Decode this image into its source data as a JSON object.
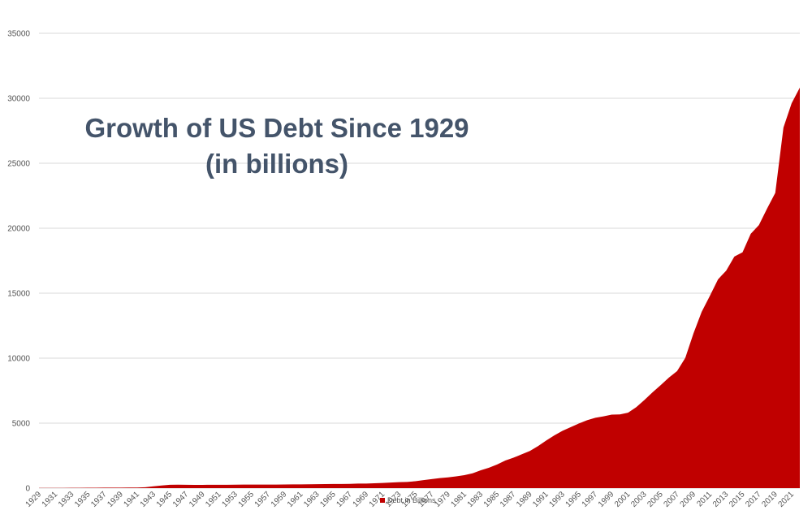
{
  "chart_data": {
    "type": "area",
    "title": "Growth of US Debt Since 1929",
    "subtitle": "(in billions)",
    "xlabel": "",
    "ylabel": "",
    "ylim": [
      0,
      35000
    ],
    "yticks": [
      0,
      5000,
      10000,
      15000,
      20000,
      25000,
      30000,
      35000
    ],
    "xticks": [
      "1929",
      "1931",
      "1933",
      "1935",
      "1937",
      "1939",
      "1941",
      "1943",
      "1945",
      "1947",
      "1949",
      "1951",
      "1953",
      "1955",
      "1957",
      "1959",
      "1961",
      "1963",
      "1965",
      "1967",
      "1969",
      "1971",
      "1973",
      "1975",
      "1977",
      "1979",
      "1981",
      "1983",
      "1985",
      "1987",
      "1989",
      "1991",
      "1993",
      "1995",
      "1997",
      "1999",
      "2001",
      "2003",
      "2005",
      "2007",
      "2009",
      "2011",
      "2013",
      "2015",
      "2017",
      "2019",
      "2021"
    ],
    "grid": true,
    "legend_position": "bottom",
    "color": "#c00000",
    "x": [
      1929,
      1930,
      1931,
      1932,
      1933,
      1934,
      1935,
      1936,
      1937,
      1938,
      1939,
      1940,
      1941,
      1942,
      1943,
      1944,
      1945,
      1946,
      1947,
      1948,
      1949,
      1950,
      1951,
      1952,
      1953,
      1954,
      1955,
      1956,
      1957,
      1958,
      1959,
      1960,
      1961,
      1962,
      1963,
      1964,
      1965,
      1966,
      1967,
      1968,
      1969,
      1970,
      1971,
      1972,
      1973,
      1974,
      1975,
      1976,
      1977,
      1978,
      1979,
      1980,
      1981,
      1982,
      1983,
      1984,
      1985,
      1986,
      1987,
      1988,
      1989,
      1990,
      1991,
      1992,
      1993,
      1994,
      1995,
      1996,
      1997,
      1998,
      1999,
      2000,
      2001,
      2002,
      2003,
      2004,
      2005,
      2006,
      2007,
      2008,
      2009,
      2010,
      2011,
      2012,
      2013,
      2014,
      2015,
      2016,
      2017,
      2018,
      2019,
      2020,
      2021,
      2022
    ],
    "series": [
      {
        "name": "Debt in Billions",
        "values": [
          17,
          16,
          17,
          19,
          23,
          27,
          29,
          34,
          36,
          37,
          40,
          43,
          49,
          72,
          137,
          201,
          259,
          269,
          258,
          252,
          253,
          257,
          255,
          259,
          266,
          271,
          274,
          273,
          271,
          276,
          285,
          286,
          289,
          298,
          306,
          312,
          317,
          320,
          326,
          348,
          354,
          371,
          398,
          427,
          458,
          475,
          533,
          620,
          699,
          772,
          827,
          908,
          998,
          1142,
          1377,
          1572,
          1823,
          2125,
          2340,
          2602,
          2857,
          3233,
          3665,
          4065,
          4411,
          4693,
          4974,
          5225,
          5413,
          5526,
          5656,
          5674,
          5807,
          6228,
          6783,
          7379,
          7933,
          8507,
          9008,
          10025,
          11910,
          13562,
          14790,
          16066,
          16738,
          17824,
          18151,
          19573,
          20245,
          21516,
          22719,
          27748,
          29617,
          30824
        ]
      }
    ]
  }
}
